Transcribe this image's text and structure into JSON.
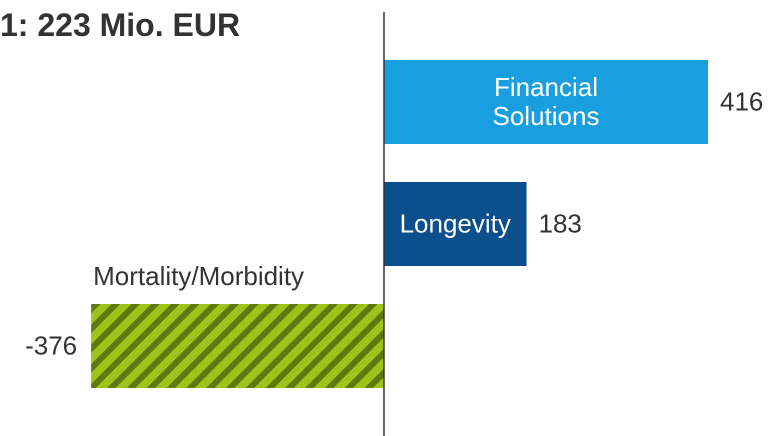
{
  "chart_data": {
    "type": "hbar",
    "title": "1: 223 Mio. EUR",
    "categories": [
      "Financial Solutions",
      "Longevity",
      "Mortality/Morbidity"
    ],
    "values": [
      416,
      183,
      -376
    ],
    "colors": [
      "#199fe0",
      "#0c4f8d",
      "#9dc41b"
    ],
    "hatched": [
      false,
      false,
      true
    ],
    "hatch_color": "#5d7a10",
    "xlim": [
      -493,
      511
    ]
  }
}
